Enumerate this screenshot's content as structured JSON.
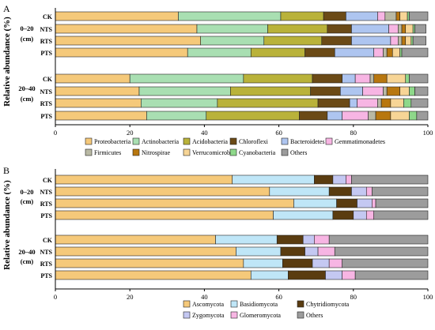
{
  "chart_data": [
    {
      "type": "bar",
      "orientation": "horizontal",
      "stacked": true,
      "panel_label": "A",
      "ylabel": "Relative abundance (%)",
      "xlim": [
        0,
        100
      ],
      "xticks": [
        0,
        20,
        40,
        60,
        80,
        100
      ],
      "groups": [
        {
          "label_line1": "0–20",
          "label_line2": "(cm)",
          "rows": [
            0,
            1,
            2,
            3
          ]
        },
        {
          "label_line1": "20–40",
          "label_line2": "(cm)",
          "rows": [
            4,
            5,
            6,
            7
          ]
        }
      ],
      "categories": [
        "CK",
        "NTS",
        "RTS",
        "PTS",
        "CK",
        "NTS",
        "RTS",
        "PTS"
      ],
      "series": [
        {
          "name": "Proteobacteria",
          "color": "#f5c97a",
          "values": [
            33.0,
            38.0,
            39.0,
            35.5,
            20.0,
            22.5,
            23.0,
            24.5
          ]
        },
        {
          "name": "Actinobacteria",
          "color": "#a9dfb2",
          "values": [
            27.5,
            19.0,
            17.0,
            17.0,
            30.5,
            24.5,
            20.5,
            16.0
          ]
        },
        {
          "name": "Acidobacteria",
          "color": "#b9b23a",
          "values": [
            11.5,
            16.0,
            15.5,
            14.5,
            18.5,
            21.5,
            27.0,
            25.0
          ]
        },
        {
          "name": "Chloroflexi",
          "color": "#6b4a16",
          "values": [
            6.0,
            6.5,
            8.0,
            8.0,
            8.0,
            8.0,
            8.5,
            7.5
          ]
        },
        {
          "name": "Bacteroidetes",
          "color": "#aec5f0",
          "values": [
            8.5,
            10.0,
            10.5,
            10.5,
            3.5,
            6.0,
            2.0,
            4.0
          ]
        },
        {
          "name": "Gemmatimonadetes",
          "color": "#f7b5e3",
          "values": [
            2.0,
            2.5,
            2.0,
            2.5,
            4.0,
            5.5,
            5.5,
            7.0
          ]
        },
        {
          "name": "Firmicutes",
          "color": "#b9b9a4",
          "values": [
            3.0,
            1.0,
            1.0,
            1.0,
            1.0,
            1.0,
            1.0,
            2.0
          ]
        },
        {
          "name": "Nitrospirae",
          "color": "#b8770f",
          "values": [
            1.0,
            1.0,
            1.0,
            1.5,
            3.5,
            3.5,
            2.5,
            4.0
          ]
        },
        {
          "name": "Verrucomicrobia",
          "color": "#f7d596",
          "values": [
            2.0,
            2.0,
            1.5,
            2.0,
            5.0,
            2.5,
            3.5,
            5.0
          ]
        },
        {
          "name": "Cyanobacteria",
          "color": "#8ed88a",
          "values": [
            0.5,
            0.5,
            0.5,
            0.5,
            1.0,
            1.5,
            2.0,
            2.0
          ]
        },
        {
          "name": "Others",
          "color": "#9c9c9c",
          "values": [
            5.0,
            3.0,
            3.5,
            7.0,
            5.0,
            3.5,
            4.5,
            3.0
          ]
        }
      ]
    },
    {
      "type": "bar",
      "orientation": "horizontal",
      "stacked": true,
      "panel_label": "B",
      "ylabel": "Relative abundance (%)",
      "xlim": [
        0,
        100
      ],
      "xticks": [
        0,
        20,
        40,
        60,
        80,
        100
      ],
      "groups": [
        {
          "label_line1": "0–20",
          "label_line2": "(cm)",
          "rows": [
            0,
            1,
            2,
            3
          ]
        },
        {
          "label_line1": "20–40",
          "label_line2": "(cm)",
          "rows": [
            4,
            5,
            6,
            7
          ]
        }
      ],
      "categories": [
        "CK",
        "NTS",
        "RTS",
        "PTS",
        "CK",
        "NTS",
        "RTS",
        "PTS"
      ],
      "series": [
        {
          "name": "Ascomycota",
          "color": "#f5c97a",
          "values": [
            47.5,
            57.5,
            64.0,
            58.5,
            43.0,
            48.5,
            50.5,
            52.5
          ]
        },
        {
          "name": "Basidiomycota",
          "color": "#bfe6f7",
          "values": [
            22.0,
            16.0,
            11.5,
            16.0,
            16.5,
            12.0,
            10.5,
            10.0
          ]
        },
        {
          "name": "Chytridiomycota",
          "color": "#5a3c10",
          "values": [
            5.0,
            6.0,
            5.5,
            5.5,
            7.0,
            6.5,
            8.0,
            10.0
          ]
        },
        {
          "name": "Zygomycota",
          "color": "#c4c8f2",
          "values": [
            3.5,
            4.0,
            4.0,
            3.5,
            3.0,
            3.5,
            4.5,
            4.5
          ]
        },
        {
          "name": "Glomeromycota",
          "color": "#f7b5e3",
          "values": [
            1.5,
            1.5,
            1.0,
            2.0,
            4.0,
            4.5,
            3.5,
            3.5
          ]
        },
        {
          "name": "Others",
          "color": "#9c9c9c",
          "values": [
            20.5,
            15.0,
            14.0,
            14.5,
            26.5,
            25.0,
            23.0,
            19.5
          ]
        }
      ]
    }
  ]
}
